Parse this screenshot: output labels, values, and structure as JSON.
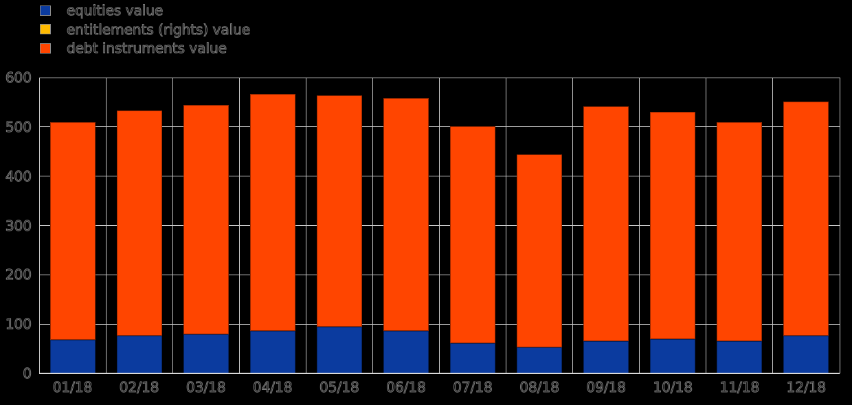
{
  "background_color": "#000000",
  "grid_color": "#c8c8c8",
  "axis_color": "#dadada",
  "chart_data": {
    "type": "bar",
    "stacked": true,
    "orientation": "vertical",
    "categories": [
      "01/18",
      "02/18",
      "03/18",
      "04/18",
      "05/18",
      "06/18",
      "07/18",
      "08/18",
      "09/18",
      "10/18",
      "11/18",
      "12/18"
    ],
    "series": [
      {
        "name": "equities value",
        "color": "#0b3b9f",
        "values": [
          68,
          77,
          80,
          86,
          95,
          87,
          61,
          53,
          65,
          69,
          66,
          76
        ]
      },
      {
        "name": "entitlements (rights) value",
        "color": "#ffba00",
        "values": [
          0,
          0,
          0,
          0,
          0,
          0,
          0,
          0,
          0,
          0,
          0,
          0
        ]
      },
      {
        "name": "debt instruments value",
        "color": "#ff4500",
        "values": [
          441,
          456,
          464,
          481,
          469,
          471,
          440,
          391,
          476,
          462,
          444,
          475
        ]
      }
    ],
    "stack_totals": [
      509,
      533,
      544,
      567,
      564,
      558,
      501,
      444,
      541,
      531,
      510,
      551
    ],
    "title": "",
    "xlabel": "",
    "ylabel": "",
    "ylim": [
      0,
      600
    ],
    "yticks": [
      0,
      100,
      200,
      300,
      400,
      500,
      600
    ],
    "grid": true,
    "legend_position": "top-left"
  }
}
